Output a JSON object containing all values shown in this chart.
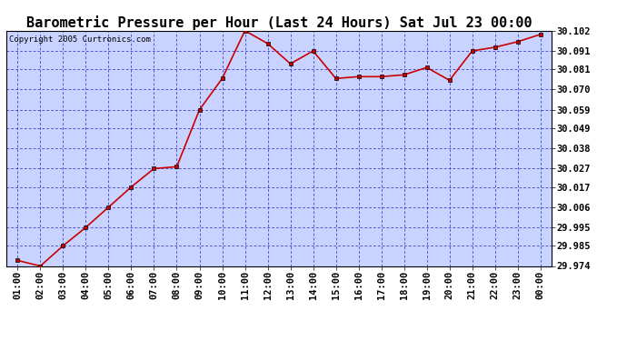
{
  "title": "Barometric Pressure per Hour (Last 24 Hours) Sat Jul 23 00:00",
  "copyright": "Copyright 2005 Curtronics.com",
  "x_labels": [
    "01:00",
    "02:00",
    "03:00",
    "04:00",
    "05:00",
    "06:00",
    "07:00",
    "08:00",
    "09:00",
    "10:00",
    "11:00",
    "12:00",
    "13:00",
    "14:00",
    "15:00",
    "16:00",
    "17:00",
    "18:00",
    "19:00",
    "20:00",
    "21:00",
    "22:00",
    "23:00",
    "00:00"
  ],
  "y_values": [
    29.977,
    29.974,
    29.985,
    29.995,
    30.006,
    30.017,
    30.027,
    30.028,
    30.059,
    30.076,
    30.102,
    30.095,
    30.084,
    30.091,
    30.076,
    30.077,
    30.077,
    30.078,
    30.082,
    30.075,
    30.091,
    30.093,
    30.096,
    30.1
  ],
  "ylim_min": 29.974,
  "ylim_max": 30.102,
  "yticks": [
    29.974,
    29.985,
    29.995,
    30.006,
    30.017,
    30.027,
    30.038,
    30.049,
    30.059,
    30.07,
    30.081,
    30.091,
    30.102
  ],
  "line_color": "#cc0000",
  "plot_bg_color": "#c8d4ff",
  "fig_bg_color": "#ffffff",
  "grid_color": "#2222cc",
  "title_fontsize": 11,
  "tick_fontsize": 7.5
}
